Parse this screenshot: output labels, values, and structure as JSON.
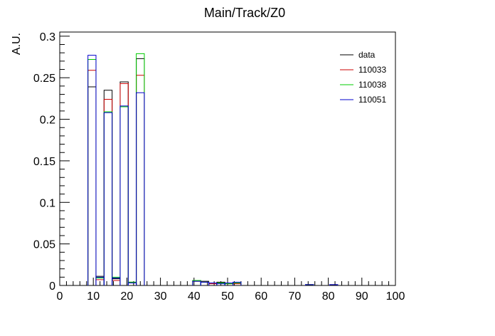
{
  "chart_data": {
    "type": "histogram",
    "title": "Main/Track/Z0",
    "xlabel": "",
    "ylabel": "A.U.",
    "xlim": [
      0,
      100
    ],
    "ylim": [
      0,
      0.305
    ],
    "bin_width": 2.4,
    "x_ticks": [
      0,
      10,
      20,
      30,
      40,
      50,
      60,
      70,
      80,
      90,
      100
    ],
    "y_ticks": [
      0,
      0.05,
      0.1,
      0.15,
      0.2,
      0.25,
      0.3
    ],
    "x_tick_labels": [
      "0",
      "10",
      "20",
      "30",
      "40",
      "50",
      "60",
      "70",
      "80",
      "90",
      "100"
    ],
    "y_tick_labels": [
      "0",
      "0.05",
      "0.1",
      "0.15",
      "0.2",
      "0.25",
      "0.3"
    ],
    "legend_position": "top-right",
    "series": [
      {
        "name": "data",
        "color": "#000000",
        "bin_starts": [
          8.4,
          10.8,
          13.2,
          15.6,
          18.0,
          20.4,
          22.8,
          39.6,
          42.0,
          44.4,
          46.8,
          49.2,
          51.6,
          54.0,
          73.2,
          80.4
        ],
        "values": [
          0.239,
          0.011,
          0.235,
          0.008,
          0.245,
          0.004,
          0.273,
          0.006,
          0.005,
          0.003,
          0.004,
          0.003,
          0.003,
          0.0,
          0.001,
          0.001
        ]
      },
      {
        "name": "110033",
        "color": "#cc0000",
        "bin_starts": [
          8.4,
          10.8,
          13.2,
          15.6,
          18.0,
          20.4,
          22.8,
          39.6,
          42.0,
          44.4,
          46.8,
          49.2,
          51.6,
          54.0,
          73.2,
          80.4
        ],
        "values": [
          0.259,
          0.007,
          0.224,
          0.006,
          0.243,
          0.003,
          0.253,
          0.005,
          0.004,
          0.002,
          0.003,
          0.002,
          0.002,
          0.0,
          0.001,
          0.0
        ]
      },
      {
        "name": "110038",
        "color": "#00cc00",
        "bin_starts": [
          8.4,
          10.8,
          13.2,
          15.6,
          18.0,
          20.4,
          22.8,
          39.6,
          42.0,
          44.4,
          46.8,
          49.2,
          51.6,
          54.0,
          73.2,
          80.4
        ],
        "values": [
          0.272,
          0.009,
          0.209,
          0.01,
          0.215,
          0.004,
          0.279,
          0.006,
          0.004,
          0.003,
          0.003,
          0.002,
          0.003,
          0.0,
          0.001,
          0.0
        ]
      },
      {
        "name": "110051",
        "color": "#0000cc",
        "bin_starts": [
          8.4,
          10.8,
          13.2,
          15.6,
          18.0,
          20.4,
          22.8,
          39.6,
          42.0,
          44.4,
          46.8,
          49.2,
          51.6,
          54.0,
          73.2,
          80.4
        ],
        "values": [
          0.277,
          0.01,
          0.208,
          0.009,
          0.216,
          0.003,
          0.232,
          0.005,
          0.004,
          0.003,
          0.002,
          0.003,
          0.004,
          0.0,
          0.001,
          0.001
        ]
      }
    ]
  }
}
